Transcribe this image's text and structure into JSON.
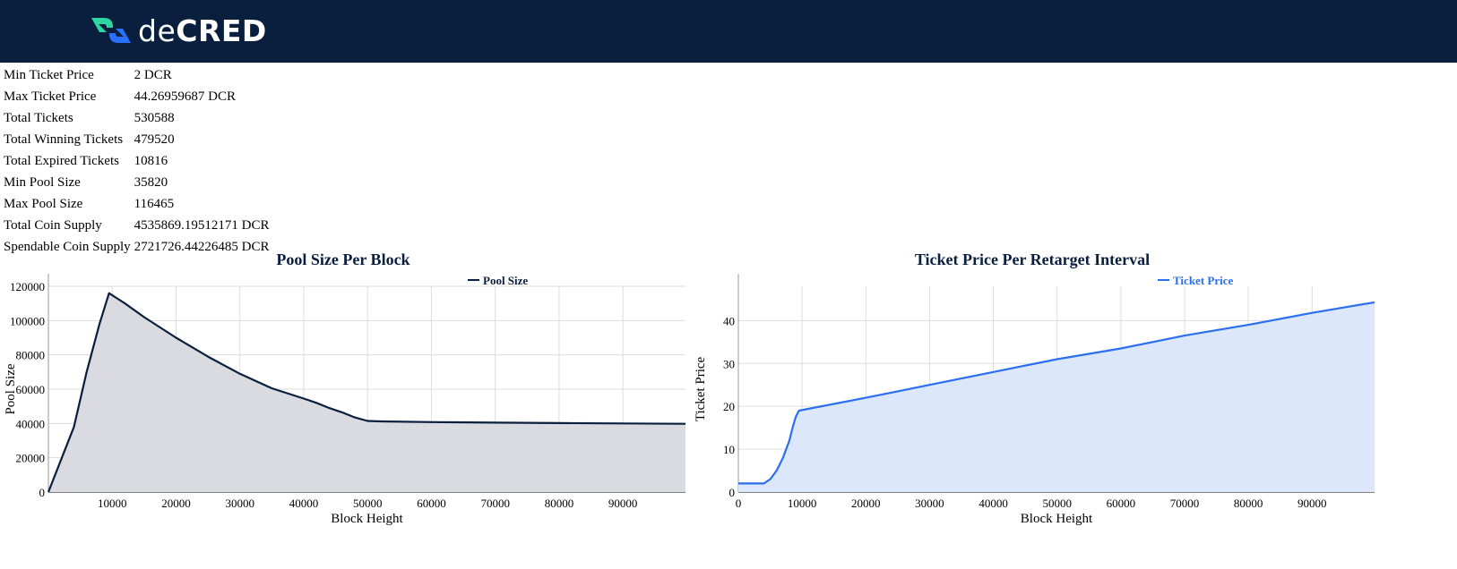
{
  "brand": {
    "logo_text_light": "de",
    "logo_text_bold": "CRED",
    "logo_mark": "decred-logo-icon"
  },
  "stats": [
    {
      "label": "Min Ticket Price",
      "value": "2 DCR"
    },
    {
      "label": "Max Ticket Price",
      "value": "44.26959687 DCR"
    },
    {
      "label": "Total Tickets",
      "value": "530588"
    },
    {
      "label": "Total Winning Tickets",
      "value": "479520"
    },
    {
      "label": "Total Expired Tickets",
      "value": "10816"
    },
    {
      "label": "Min Pool Size",
      "value": "35820"
    },
    {
      "label": "Max Pool Size",
      "value": "116465"
    },
    {
      "label": "Total Coin Supply",
      "value": "4535869.19512171 DCR"
    },
    {
      "label": "Spendable Coin Supply",
      "value": "2721726.44226485 DCR"
    }
  ],
  "chart_data": [
    {
      "type": "area",
      "title": "Pool Size Per Block",
      "xlabel": "Block Height",
      "ylabel": "Pool Size",
      "xlim": [
        0,
        99800
      ],
      "ylim": [
        0,
        120000
      ],
      "xticks": [
        10000,
        20000,
        30000,
        40000,
        50000,
        60000,
        70000,
        80000,
        90000
      ],
      "yticks": [
        0,
        20000,
        40000,
        60000,
        80000,
        100000,
        120000
      ],
      "grid": true,
      "legend_position": "top-right",
      "series": [
        {
          "name": "Pool Size",
          "color": "#0a1e3e",
          "fill": "#d9dbe0",
          "x": [
            0,
            4000,
            6000,
            8000,
            9500,
            12000,
            15000,
            20000,
            25000,
            30000,
            35000,
            40000,
            42000,
            44000,
            46000,
            48000,
            50000,
            52000,
            60000,
            70000,
            80000,
            90000,
            99800
          ],
          "y": [
            0,
            38000,
            70000,
            98000,
            116000,
            110000,
            102000,
            90000,
            79000,
            69000,
            60500,
            54500,
            52000,
            49000,
            46500,
            43500,
            41500,
            41200,
            40800,
            40500,
            40200,
            40000,
            39800
          ]
        }
      ]
    },
    {
      "type": "area",
      "title": "Ticket Price Per Retarget Interval",
      "xlabel": "Block Height",
      "ylabel": "Ticket Price",
      "xlim": [
        0,
        99800
      ],
      "ylim": [
        0,
        48
      ],
      "xticks": [
        0,
        10000,
        20000,
        30000,
        40000,
        50000,
        60000,
        70000,
        80000,
        90000
      ],
      "yticks": [
        0,
        10,
        20,
        30,
        40
      ],
      "grid": true,
      "legend_position": "top-right",
      "series": [
        {
          "name": "Ticket Price",
          "color": "#2b6ff0",
          "fill": "#dde7fb",
          "x": [
            0,
            4000,
            5000,
            6000,
            7000,
            8000,
            8500,
            9000,
            9500,
            20000,
            30000,
            40000,
            50000,
            60000,
            70000,
            80000,
            90000,
            99800
          ],
          "y": [
            2,
            2,
            3,
            5,
            8,
            12,
            15,
            17.5,
            19,
            22,
            25,
            28,
            31,
            33.5,
            36.5,
            39,
            41.8,
            44.27
          ]
        }
      ]
    }
  ]
}
